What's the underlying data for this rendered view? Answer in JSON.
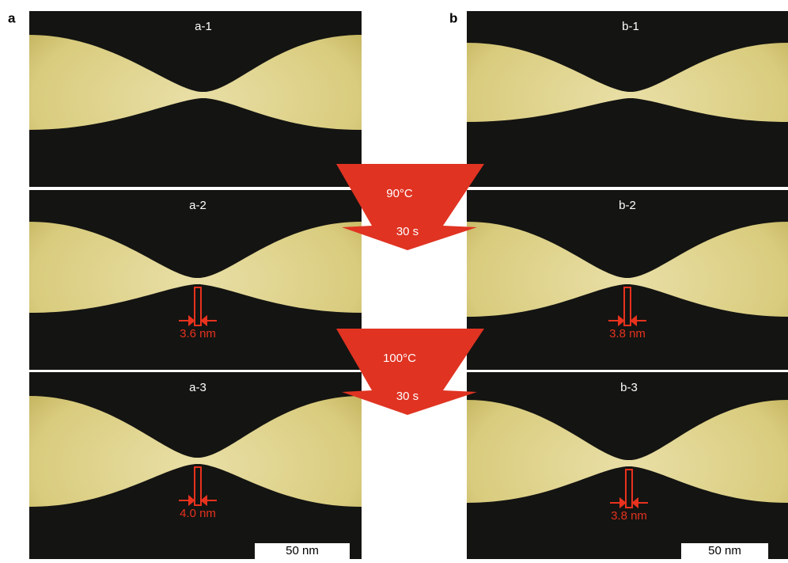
{
  "figure": {
    "panel_labels": [
      "a",
      "b"
    ],
    "images": [
      {
        "label": "a-1"
      },
      {
        "label": "a-2",
        "measurement": "3.6 nm"
      },
      {
        "label": "a-3",
        "measurement": "4.0 nm",
        "scale_bar": "50 nm"
      },
      {
        "label": "b-1"
      },
      {
        "label": "b-2",
        "measurement": "3.8 nm"
      },
      {
        "label": "b-3",
        "measurement": "3.8 nm",
        "scale_bar": "50 nm"
      }
    ],
    "steps": [
      {
        "temperature": "90°C",
        "time": "30 s"
      },
      {
        "temperature": "100°C",
        "time": "30 s"
      }
    ]
  }
}
